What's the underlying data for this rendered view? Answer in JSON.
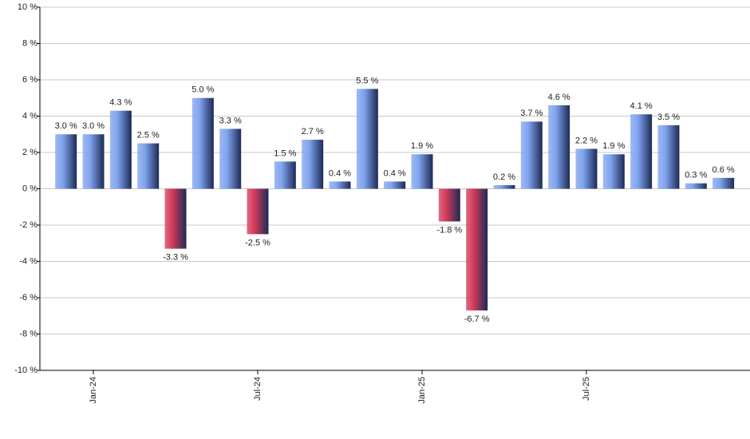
{
  "chart_data": {
    "type": "bar",
    "categories": [
      null,
      "Jan-24",
      null,
      null,
      null,
      null,
      null,
      "Jul-24",
      null,
      null,
      null,
      null,
      null,
      "Jan-25",
      null,
      null,
      null,
      null,
      null,
      "Jul-25",
      null,
      null,
      null,
      null,
      null
    ],
    "values": [
      3.0,
      3.0,
      4.3,
      2.5,
      -3.3,
      5.0,
      3.3,
      -2.5,
      1.5,
      2.7,
      0.4,
      5.5,
      0.4,
      1.9,
      -1.8,
      -6.7,
      0.2,
      3.7,
      4.6,
      2.2,
      1.9,
      4.1,
      3.5,
      0.3,
      0.6
    ],
    "value_labels": [
      "3.0 %",
      "3.0 %",
      "4.3 %",
      "2.5 %",
      "-3.3 %",
      "5.0 %",
      "3.3 %",
      "-2.5 %",
      "1.5 %",
      "2.7 %",
      "0.4 %",
      "5.5 %",
      "0.4 %",
      "1.9 %",
      "-1.8 %",
      "-6.7 %",
      "0.2 %",
      "3.7 %",
      "4.6 %",
      "2.2 %",
      "1.9 %",
      "4.1 %",
      "3.5 %",
      "0.3 %",
      "0.6 %"
    ],
    "color": "#7fa3ee",
    "negative_color": "#d23a5a",
    "ylim": [
      -10,
      10
    ],
    "yticks": [
      {
        "value": -10,
        "label": "-10 %"
      },
      {
        "value": -8,
        "label": "-8 %"
      },
      {
        "value": -6,
        "label": "-6 %"
      },
      {
        "value": -4,
        "label": "-4 %"
      },
      {
        "value": -2,
        "label": "-2 %"
      },
      {
        "value": 0,
        "label": "0 %"
      },
      {
        "value": 2,
        "label": "2 %"
      },
      {
        "value": 4,
        "label": "4 %"
      },
      {
        "value": 6,
        "label": "6 %"
      },
      {
        "value": 8,
        "label": "8 %"
      },
      {
        "value": 10,
        "label": "10 %"
      }
    ],
    "grid": true
  }
}
